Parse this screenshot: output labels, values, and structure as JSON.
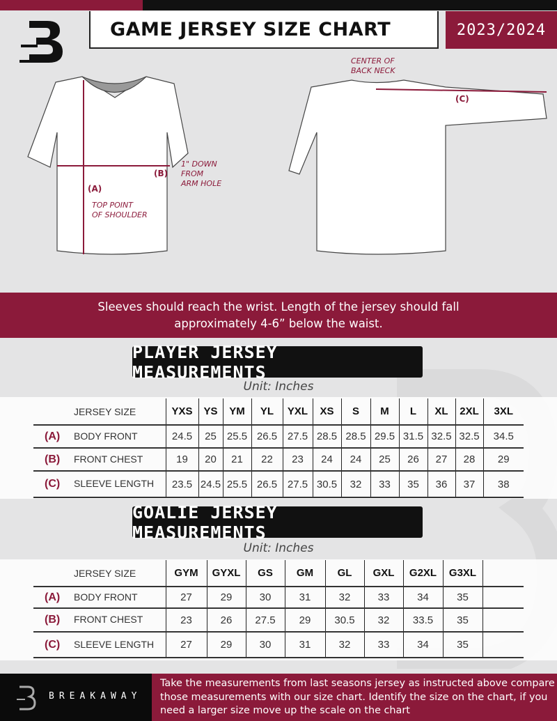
{
  "header": {
    "title": "GAME JERSEY SIZE CHART",
    "season": "2023/2024",
    "colors": {
      "accent": "#8b1a3a",
      "dark": "#111111"
    }
  },
  "diagram": {
    "front_labels": {
      "a": "(A)",
      "a_text": "TOP POINT\nOF SHOULDER",
      "b": "(B)",
      "b_text": "1\" DOWN\nFROM\nARM HOLE"
    },
    "back_labels": {
      "c": "(C)",
      "c_text": "CENTER OF\nBACK NECK"
    }
  },
  "instruction": "Sleeves should reach the wrist. Length of the jersey should fall approximately 4-6” below the waist.",
  "player": {
    "title": "PLAYER JERSEY MEASUREMENTS",
    "unit": "Unit: Inches",
    "header_label": "JERSEY SIZE",
    "sizes": [
      "YXS",
      "YS",
      "YM",
      "YL",
      "YXL",
      "XS",
      "S",
      "M",
      "L",
      "XL",
      "2XL",
      "3XL"
    ],
    "rows": [
      {
        "letter": "(A)",
        "label": "BODY FRONT",
        "values": [
          "24.5",
          "25",
          "25.5",
          "26.5",
          "27.5",
          "28.5",
          "28.5",
          "29.5",
          "31.5",
          "32.5",
          "32.5",
          "34.5"
        ]
      },
      {
        "letter": "(B)",
        "label": "FRONT CHEST",
        "values": [
          "19",
          "20",
          "21",
          "22",
          "23",
          "24",
          "24",
          "25",
          "26",
          "27",
          "28",
          "29"
        ]
      },
      {
        "letter": "(C)",
        "label": "SLEEVE LENGTH",
        "values": [
          "23.5",
          "24.5",
          "25.5",
          "26.5",
          "27.5",
          "30.5",
          "32",
          "33",
          "35",
          "36",
          "37",
          "38"
        ]
      }
    ]
  },
  "goalie": {
    "title": "GOALIE JERSEY MEASUREMENTS",
    "unit": "Unit: Inches",
    "header_label": "JERSEY SIZE",
    "sizes": [
      "GYM",
      "GYXL",
      "GS",
      "GM",
      "GL",
      "GXL",
      "G2XL",
      "G3XL",
      ""
    ],
    "rows": [
      {
        "letter": "(A)",
        "label": "BODY FRONT",
        "values": [
          "27",
          "29",
          "30",
          "31",
          "32",
          "33",
          "34",
          "35",
          ""
        ]
      },
      {
        "letter": "(B)",
        "label": "FRONT CHEST",
        "values": [
          "23",
          "26",
          "27.5",
          "29",
          "30.5",
          "32",
          "33.5",
          "35",
          ""
        ]
      },
      {
        "letter": "(C)",
        "label": "SLEEVE LENGTH",
        "values": [
          "27",
          "29",
          "30",
          "31",
          "32",
          "33",
          "34",
          "35",
          ""
        ]
      }
    ]
  },
  "footer": {
    "brand": "BREAKAWAY",
    "text": "Take the measurements from last seasons jersey as instructed above compare those measurements  with our size chart. Identify the size on the chart, if you need a larger size move up the scale on the chart"
  }
}
